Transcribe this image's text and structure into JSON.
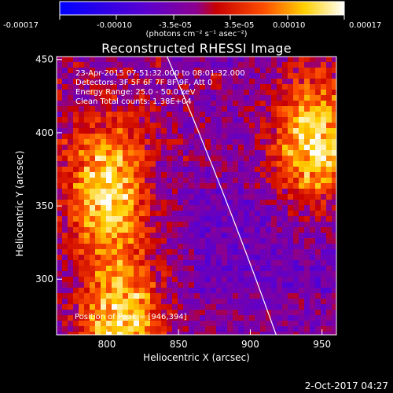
{
  "colorbar": {
    "ticks": [
      "-0.00017",
      "-0.00010",
      "-3.5e-05",
      "3.5e-05",
      "0.00010",
      "0.00017"
    ],
    "unit": "(photons cm⁻² s⁻¹ asec⁻²)",
    "colors": [
      "#0000ff",
      "#5a00d0",
      "#9000a0",
      "#d00000",
      "#ff5000",
      "#ffd000",
      "#ffffff"
    ]
  },
  "plot": {
    "title": "Reconstructed RHESSI Image",
    "info_lines": [
      "23-Apr-2015 07:51:32.000 to 08:01:32.000",
      "Detectors: 3F 5F 6F 7F 8F 9F, Att 0",
      "Energy Range: 25.0 - 50.0 keV",
      "Clean     Total counts: 1.38E+04"
    ],
    "peak_label": "Position of Peak = [946,394]",
    "timestamp": "2-Oct-2017 04:27"
  },
  "chart_data": {
    "type": "heatmap",
    "title": "Reconstructed RHESSI Image",
    "xlabel": "Heliocentric X (arcsec)",
    "ylabel": "Heliocentric Y (arcsec)",
    "xlim": [
      765,
      960
    ],
    "ylim": [
      262,
      452
    ],
    "xticks": [
      800,
      850,
      900,
      950
    ],
    "yticks": [
      300,
      350,
      400,
      450
    ],
    "zlim": [
      -0.00017,
      0.00017
    ],
    "peak": [
      946,
      394
    ],
    "bright_regions": [
      {
        "x": 800,
        "y": 360,
        "level": 0.00017
      },
      {
        "x": 945,
        "y": 395,
        "level": 0.00017
      },
      {
        "x": 810,
        "y": 268,
        "level": 0.00017
      }
    ],
    "limb_curve": {
      "x": [
        842,
        918
      ],
      "y": [
        452,
        262
      ]
    }
  }
}
